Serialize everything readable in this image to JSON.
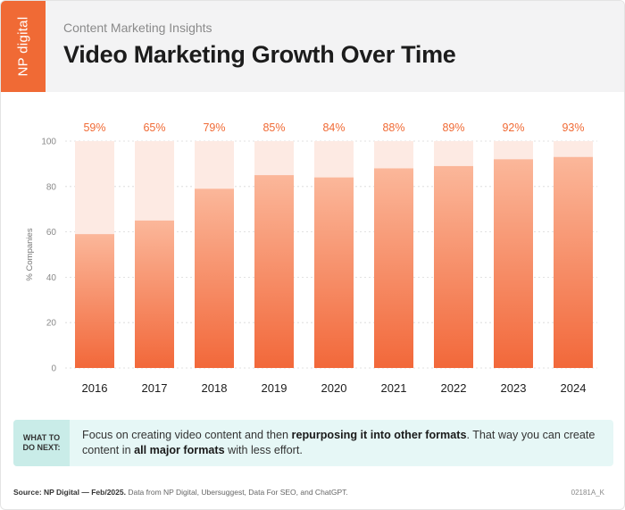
{
  "header": {
    "logo_text": "NP digital",
    "subtitle": "Content Marketing Insights",
    "title": "Video Marketing Growth Over Time"
  },
  "colors": {
    "accent": "#f06a35",
    "bar_top": "#fbb79a",
    "bar_bottom": "#f2683a",
    "track": "#fdeae3",
    "label": "#f06a35",
    "tip_bg": "#e6f7f6",
    "tip_badge": "#c9ece8"
  },
  "chart_data": {
    "type": "bar",
    "ylabel": "% Companies",
    "ylim": [
      0,
      100
    ],
    "yticks": [
      0,
      20,
      40,
      60,
      80,
      100
    ],
    "categories": [
      "2016",
      "2017",
      "2018",
      "2019",
      "2020",
      "2021",
      "2022",
      "2023",
      "2024"
    ],
    "values": [
      59,
      65,
      79,
      85,
      84,
      88,
      89,
      92,
      93
    ],
    "data_labels": [
      "59%",
      "65%",
      "79%",
      "85%",
      "84%",
      "88%",
      "89%",
      "92%",
      "93%"
    ],
    "grid": true,
    "legend": "none"
  },
  "tip": {
    "badge": "WHAT TO DO NEXT:",
    "text_1": "Focus on creating video content and then ",
    "bold_1": "repurposing it into other formats",
    "text_2": ". That way you can create content in ",
    "bold_2": "all major formats",
    "text_3": " with less effort."
  },
  "footer": {
    "source_bold": "Source: NP Digital — Feb/2025.",
    "source_rest": " Data from NP Digital, Ubersuggest, Data For SEO, and ChatGPT.",
    "code": "02181A_K"
  }
}
